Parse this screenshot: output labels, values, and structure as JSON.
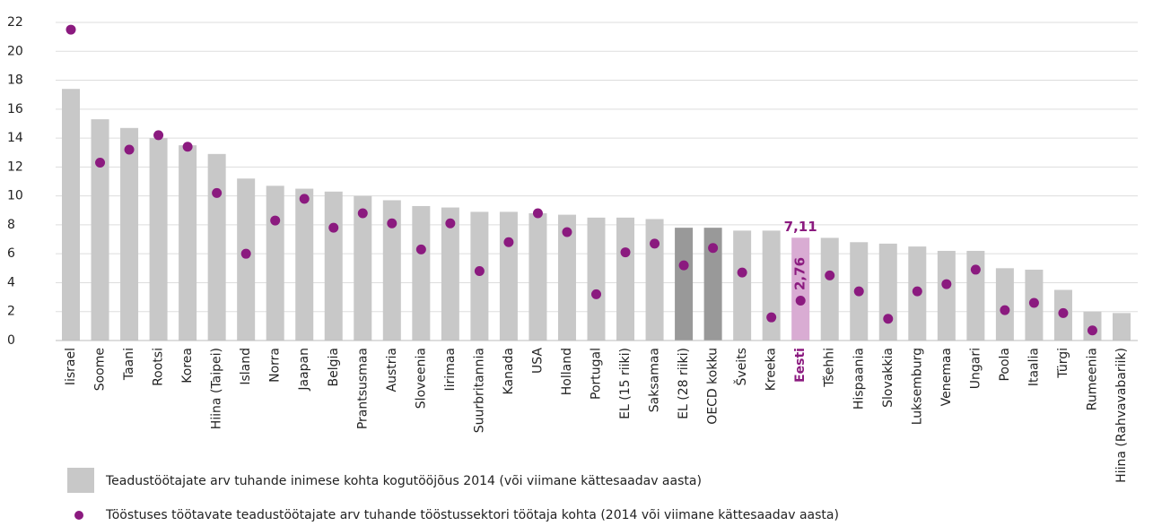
{
  "chart_data": {
    "type": "bar",
    "categories": [
      "Iisrael",
      "Soome",
      "Taani",
      "Rootsi",
      "Korea",
      "Hiina (Taipei)",
      "Island",
      "Norra",
      "Jaapan",
      "Belgia",
      "Prantsusmaa",
      "Austria",
      "Sloveenia",
      "Iirimaa",
      "Suurbritannia",
      "Kanada",
      "USA",
      "Holland",
      "Portugal",
      "EL (15 riiki)",
      "Saksamaa",
      "EL (28 riiki)",
      "OECD kokku",
      "Šveits",
      "Kreeka",
      "Eesti",
      "Tšehhi",
      "Hispaania",
      "Slovakkia",
      "Luksemburg",
      "Venemaa",
      "Ungari",
      "Poola",
      "Itaalia",
      "Türgi",
      "Rumeenia",
      "Hiina (Rahvavabariik)"
    ],
    "series": [
      {
        "name": "Teadustöötajate arv tuhande inimese kohta kogutööjõus 2014 (või viimane kättesaadav aasta)",
        "type": "bar",
        "color": "#c8c8c8",
        "colors": [
          "#c8c8c8",
          "#c8c8c8",
          "#c8c8c8",
          "#c8c8c8",
          "#c8c8c8",
          "#c8c8c8",
          "#c8c8c8",
          "#c8c8c8",
          "#c8c8c8",
          "#c8c8c8",
          "#c8c8c8",
          "#c8c8c8",
          "#c8c8c8",
          "#c8c8c8",
          "#c8c8c8",
          "#c8c8c8",
          "#c8c8c8",
          "#c8c8c8",
          "#c8c8c8",
          "#c8c8c8",
          "#c8c8c8",
          "#999999",
          "#999999",
          "#c8c8c8",
          "#c8c8c8",
          "#d9acd3",
          "#c8c8c8",
          "#c8c8c8",
          "#c8c8c8",
          "#c8c8c8",
          "#c8c8c8",
          "#c8c8c8",
          "#c8c8c8",
          "#c8c8c8",
          "#c8c8c8",
          "#c8c8c8",
          "#c8c8c8"
        ],
        "values": [
          17.4,
          15.3,
          14.7,
          14.0,
          13.5,
          12.9,
          11.2,
          10.7,
          10.5,
          10.3,
          10.0,
          9.7,
          9.3,
          9.2,
          8.9,
          8.9,
          8.8,
          8.7,
          8.5,
          8.5,
          8.4,
          7.8,
          7.8,
          7.6,
          7.6,
          7.11,
          7.1,
          6.8,
          6.7,
          6.5,
          6.2,
          6.2,
          5.0,
          4.9,
          3.5,
          2.0,
          1.9
        ],
        "value_labels": [
          null,
          null,
          null,
          null,
          null,
          null,
          null,
          null,
          null,
          null,
          null,
          null,
          null,
          null,
          null,
          null,
          null,
          null,
          null,
          null,
          null,
          null,
          null,
          null,
          null,
          "7,11",
          null,
          null,
          null,
          null,
          null,
          null,
          null,
          null,
          null,
          null,
          null
        ]
      },
      {
        "name": "Tööstuses töötavate teadustöötajate arv tuhande tööstussektori töötaja kohta (2014 või viimane kättesaadav aasta)",
        "type": "scatter",
        "color": "#8b1a7f",
        "values": [
          21.5,
          12.3,
          13.2,
          14.2,
          13.4,
          10.2,
          6.0,
          8.3,
          9.8,
          7.8,
          8.8,
          8.1,
          6.3,
          8.1,
          4.8,
          6.8,
          8.8,
          7.5,
          3.2,
          6.1,
          6.7,
          5.2,
          6.4,
          4.7,
          1.6,
          2.76,
          4.5,
          3.4,
          1.5,
          3.4,
          3.9,
          4.9,
          2.1,
          2.6,
          1.9,
          0.7,
          null
        ],
        "value_labels": [
          null,
          null,
          null,
          null,
          null,
          null,
          null,
          null,
          null,
          null,
          null,
          null,
          null,
          null,
          null,
          null,
          null,
          null,
          null,
          null,
          null,
          null,
          null,
          null,
          null,
          "2,76",
          null,
          null,
          null,
          null,
          null,
          null,
          null,
          null,
          null,
          null,
          null
        ]
      }
    ],
    "ylim": [
      0,
      22
    ],
    "yticks": [
      0,
      2,
      4,
      6,
      8,
      10,
      12,
      14,
      16,
      18,
      20,
      22
    ],
    "grid": true,
    "legend": "bottom"
  }
}
